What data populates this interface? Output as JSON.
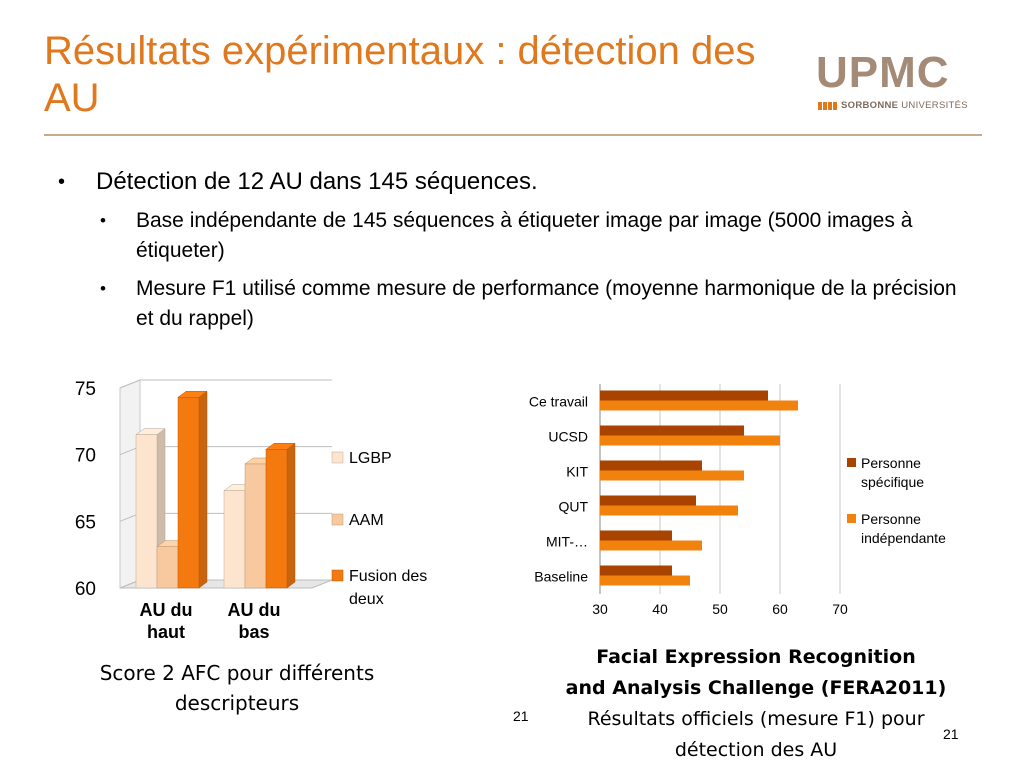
{
  "slide": {
    "title": "Résultats expérimentaux : détection des AU",
    "page_number": "21",
    "page_number_inline": "21"
  },
  "logo": {
    "main": "UPMC",
    "sub_bold": "SORBONNE",
    "sub_light": "UNIVERSITÉS",
    "color": "#A48B78",
    "accent": "#E0781E"
  },
  "bullets": {
    "main": "Détection de 12 AU dans 145 séquences.",
    "sub": [
      "Base indépendante de 145 séquences à étiqueter image par image (5000 images à étiqueter)",
      "Mesure F1 utilisé comme mesure de performance (moyenne harmonique de la précision et du rappel)"
    ]
  },
  "captions": {
    "left": "Score 2 AFC pour différents descripteurs",
    "right_bold_line1": "Facial Expression Recognition",
    "right_bold_line2": "and Analysis Challenge (FERA2011)",
    "right_normal": "Résultats officiels (mesure F1) pour détection des AU"
  },
  "chart_data": [
    {
      "type": "bar",
      "orientation": "vertical-3d",
      "categories": [
        "AU du haut",
        "AU du bas"
      ],
      "series": [
        {
          "name": "LGBP",
          "values": [
            71.5,
            67.3
          ],
          "color": "#FCE4CF"
        },
        {
          "name": "AAM",
          "values": [
            63.1,
            69.3
          ],
          "color": "#F8C99E"
        },
        {
          "name": "Fusion des deux",
          "values": [
            74.3,
            70.4
          ],
          "color": "#F47A10"
        }
      ],
      "yticks": [
        60,
        65,
        70,
        75
      ],
      "ylim": [
        60,
        75
      ],
      "legend": "right",
      "grid": true
    },
    {
      "type": "bar",
      "orientation": "horizontal",
      "categories": [
        "Ce travail",
        "UCSD",
        "KIT",
        "QUT",
        "MIT-…",
        "Baseline"
      ],
      "series": [
        {
          "name": "Personne spécifique",
          "values": [
            58,
            54,
            47,
            46,
            42,
            42
          ],
          "color": "#A84300"
        },
        {
          "name": "Personne indépendante",
          "values": [
            63,
            60,
            54,
            53,
            47,
            45
          ],
          "color": "#F2820E"
        }
      ],
      "xticks": [
        30,
        40,
        50,
        60,
        70
      ],
      "xlim": [
        30,
        70
      ],
      "legend": "right",
      "grid": true
    }
  ]
}
